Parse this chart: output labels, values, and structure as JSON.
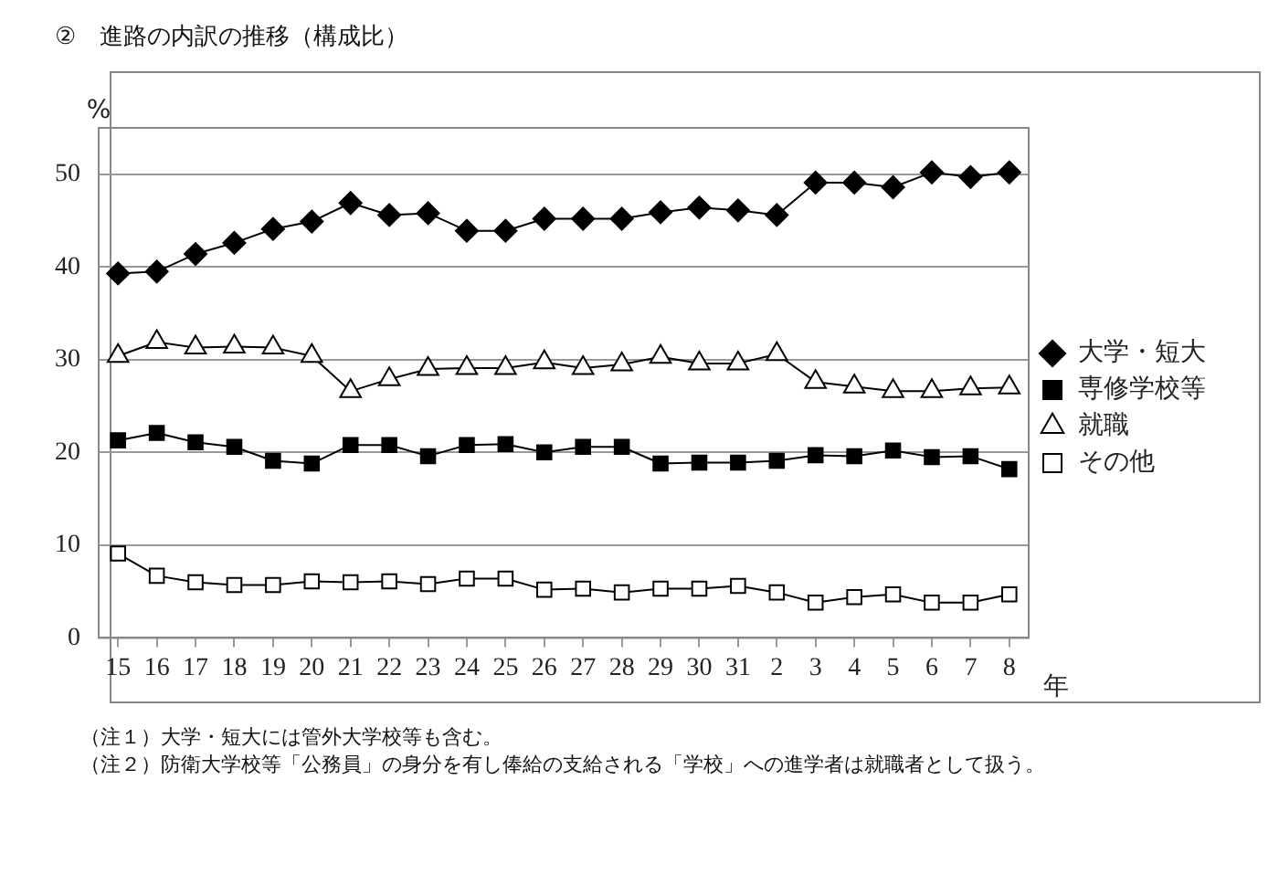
{
  "chart_data": {
    "type": "line",
    "title": "②　進路の内訳の推移（構成比）",
    "ylabel": "%",
    "xlabel": "年",
    "categories": [
      "15",
      "16",
      "17",
      "18",
      "19",
      "20",
      "21",
      "22",
      "23",
      "24",
      "25",
      "26",
      "27",
      "28",
      "29",
      "30",
      "31",
      "2",
      "3",
      "4",
      "5",
      "6",
      "7",
      "8"
    ],
    "series": [
      {
        "name": "大学・短大",
        "color": "#000000",
        "marker": "diamond",
        "values": [
          39.3,
          39.5,
          41.4,
          42.6,
          44.1,
          44.9,
          46.9,
          45.6,
          45.8,
          43.9,
          43.9,
          45.2,
          45.2,
          45.2,
          45.9,
          46.4,
          46.1,
          45.6,
          49.1,
          49.1,
          48.6,
          50.2,
          49.7,
          50.2
        ]
      },
      {
        "name": "専修学校等",
        "color": "#000000",
        "marker": "square",
        "values": [
          21.3,
          22.1,
          21.1,
          20.6,
          19.1,
          18.8,
          20.8,
          20.8,
          19.6,
          20.8,
          20.9,
          20.0,
          20.6,
          20.6,
          18.8,
          18.9,
          18.9,
          19.1,
          19.7,
          19.6,
          20.2,
          19.5,
          19.6,
          18.2
        ]
      },
      {
        "name": "就職",
        "color": "#ffffff",
        "marker": "triangle",
        "values": [
          30.4,
          31.9,
          31.3,
          31.4,
          31.3,
          30.4,
          26.6,
          27.9,
          29.0,
          29.1,
          29.1,
          29.7,
          29.1,
          29.5,
          30.3,
          29.6,
          29.6,
          30.6,
          27.6,
          27.1,
          26.6,
          26.6,
          26.9,
          27.0
        ]
      },
      {
        "name": "その他",
        "color": "#ffffff",
        "marker": "square",
        "values": [
          9.1,
          6.7,
          6.0,
          5.7,
          5.7,
          6.1,
          6.0,
          6.1,
          5.8,
          6.4,
          6.4,
          5.2,
          5.3,
          4.9,
          5.3,
          5.3,
          5.6,
          4.9,
          3.8,
          4.4,
          4.7,
          3.8,
          3.8,
          4.7
        ]
      }
    ],
    "ylim": [
      0,
      55
    ],
    "yticks": [
      0,
      10,
      20,
      30,
      40,
      50
    ],
    "grid": "y",
    "legend": "right",
    "line_style": "solid",
    "annotations": [
      "（注１）大学・短大には管外大学校等も含む。",
      "（注２）防衛大学校等「公務員」の身分を有し俸給の支給される「学校」への進学者は就職者として扱う。"
    ]
  }
}
